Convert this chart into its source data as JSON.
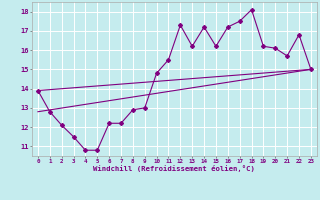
{
  "xlabel": "Windchill (Refroidissement éolien,°C)",
  "background_color": "#c5ecee",
  "line_color": "#800080",
  "grid_color": "#ffffff",
  "x_ticks": [
    0,
    1,
    2,
    3,
    4,
    5,
    6,
    7,
    8,
    9,
    10,
    11,
    12,
    13,
    14,
    15,
    16,
    17,
    18,
    19,
    20,
    21,
    22,
    23
  ],
  "y_ticks": [
    11,
    12,
    13,
    14,
    15,
    16,
    17,
    18
  ],
  "ylim": [
    10.5,
    18.5
  ],
  "xlim": [
    -0.5,
    23.5
  ],
  "zigzag_x": [
    0,
    1,
    2,
    3,
    4,
    5,
    6,
    7,
    8,
    9,
    10,
    11,
    12,
    13,
    14,
    15,
    16,
    17,
    18,
    19,
    20,
    21,
    22,
    23
  ],
  "zigzag_y": [
    13.9,
    12.8,
    12.1,
    11.5,
    10.8,
    10.8,
    12.2,
    12.2,
    12.9,
    13.0,
    14.8,
    15.5,
    17.3,
    16.2,
    17.2,
    16.2,
    17.2,
    17.5,
    18.1,
    16.2,
    16.1,
    15.7,
    16.8,
    15.0
  ],
  "upper_line_x": [
    0,
    23
  ],
  "upper_line_y": [
    13.9,
    15.0
  ],
  "lower_line_x": [
    0,
    23
  ],
  "lower_line_y": [
    12.8,
    15.0
  ]
}
